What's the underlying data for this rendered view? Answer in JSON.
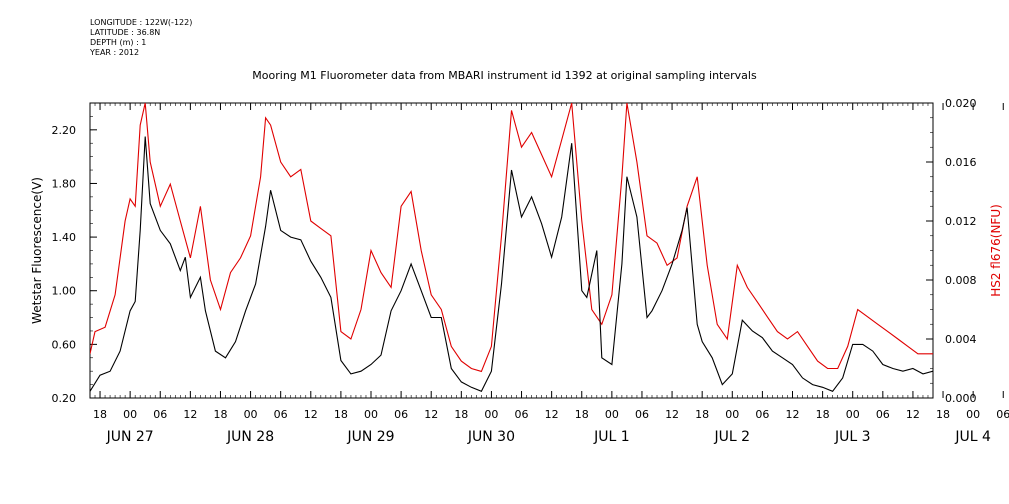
{
  "header_info": {
    "longitude": "LONGITUDE : 122W(-122)",
    "latitude": "LATITUDE : 36.8N",
    "depth": "DEPTH (m) : 1",
    "year": "YEAR : 2012"
  },
  "chart_data": {
    "type": "line",
    "title": "Mooring M1 Fluorometer data from MBARI instrument id 1392 at original sampling intervals",
    "ylabel_left": "Wetstar Fluorescence(V)",
    "ylabel_right": "HS2 fl676(NFU)",
    "ylim_left": [
      0.2,
      2.4
    ],
    "ylim_right": [
      0.0,
      0.02
    ],
    "yticks_left": [
      "0.20",
      "0.60",
      "1.00",
      "1.40",
      "1.80",
      "2.20"
    ],
    "yticks_right": [
      "0.000",
      "0.004",
      "0.008",
      "0.012",
      "0.016",
      "0.020"
    ],
    "xrange_hours": [
      -8,
      160
    ],
    "hour_ticks": [
      "18",
      "00",
      "06",
      "12",
      "18",
      "00",
      "06",
      "12",
      "18",
      "00",
      "06",
      "12",
      "18",
      "00",
      "06",
      "12",
      "18",
      "00",
      "06",
      "12",
      "18",
      "00",
      "06",
      "12",
      "18",
      "00",
      "06",
      "12",
      "18",
      "00",
      "06",
      "12",
      "18",
      "00",
      "06",
      "12"
    ],
    "day_labels": [
      "JUN 27",
      "JUN 28",
      "JUN 29",
      "JUN 30",
      "JUL  1",
      "JUL  2",
      "JUL  3",
      "JUL  4"
    ],
    "colors": {
      "left_series": "#000000",
      "right_series": "#e00000"
    },
    "series": [
      {
        "axis": "left",
        "points": [
          [
            -8,
            0.25
          ],
          [
            -6,
            0.37
          ],
          [
            -4,
            0.4
          ],
          [
            -2,
            0.55
          ],
          [
            0,
            0.85
          ],
          [
            1,
            0.92
          ],
          [
            2,
            1.45
          ],
          [
            3,
            2.15
          ],
          [
            4,
            1.65
          ],
          [
            6,
            1.45
          ],
          [
            8,
            1.35
          ],
          [
            10,
            1.15
          ],
          [
            11,
            1.25
          ],
          [
            12,
            0.95
          ],
          [
            14,
            1.1
          ],
          [
            15,
            0.85
          ],
          [
            17,
            0.55
          ],
          [
            19,
            0.5
          ],
          [
            21,
            0.62
          ],
          [
            23,
            0.85
          ],
          [
            25,
            1.05
          ],
          [
            27,
            1.48
          ],
          [
            28,
            1.75
          ],
          [
            30,
            1.45
          ],
          [
            32,
            1.4
          ],
          [
            34,
            1.38
          ],
          [
            36,
            1.22
          ],
          [
            38,
            1.1
          ],
          [
            40,
            0.95
          ],
          [
            42,
            0.48
          ],
          [
            44,
            0.38
          ],
          [
            46,
            0.4
          ],
          [
            48,
            0.45
          ],
          [
            50,
            0.52
          ],
          [
            52,
            0.85
          ],
          [
            54,
            1.0
          ],
          [
            56,
            1.2
          ],
          [
            58,
            1.0
          ],
          [
            60,
            0.8
          ],
          [
            62,
            0.8
          ],
          [
            64,
            0.42
          ],
          [
            66,
            0.32
          ],
          [
            68,
            0.28
          ],
          [
            70,
            0.25
          ],
          [
            72,
            0.4
          ],
          [
            74,
            1.05
          ],
          [
            76,
            1.9
          ],
          [
            78,
            1.55
          ],
          [
            80,
            1.7
          ],
          [
            82,
            1.5
          ],
          [
            84,
            1.25
          ],
          [
            86,
            1.55
          ],
          [
            88,
            2.1
          ],
          [
            90,
            1.0
          ],
          [
            91,
            0.95
          ],
          [
            93,
            1.3
          ],
          [
            94,
            0.5
          ],
          [
            96,
            0.45
          ],
          [
            98,
            1.2
          ],
          [
            99,
            1.85
          ],
          [
            101,
            1.55
          ],
          [
            103,
            0.8
          ],
          [
            104,
            0.85
          ],
          [
            106,
            1.0
          ],
          [
            108,
            1.2
          ],
          [
            110,
            1.45
          ],
          [
            111,
            1.62
          ],
          [
            113,
            0.75
          ],
          [
            114,
            0.62
          ],
          [
            116,
            0.5
          ],
          [
            118,
            0.3
          ],
          [
            120,
            0.38
          ],
          [
            122,
            0.78
          ],
          [
            124,
            0.7
          ],
          [
            126,
            0.65
          ],
          [
            128,
            0.55
          ],
          [
            130,
            0.5
          ],
          [
            132,
            0.45
          ],
          [
            134,
            0.35
          ],
          [
            136,
            0.3
          ],
          [
            138,
            0.28
          ],
          [
            140,
            0.25
          ],
          [
            142,
            0.35
          ],
          [
            144,
            0.6
          ],
          [
            146,
            0.6
          ],
          [
            148,
            0.55
          ],
          [
            150,
            0.45
          ],
          [
            152,
            0.42
          ],
          [
            154,
            0.4
          ],
          [
            156,
            0.42
          ],
          [
            158,
            0.38
          ],
          [
            160,
            0.4
          ]
        ]
      },
      {
        "axis": "right",
        "points": [
          [
            -8,
            0.003
          ],
          [
            -7,
            0.0045
          ],
          [
            -5,
            0.0048
          ],
          [
            -3,
            0.007
          ],
          [
            -1,
            0.012
          ],
          [
            0,
            0.0135
          ],
          [
            1,
            0.013
          ],
          [
            2,
            0.0185
          ],
          [
            3,
            0.02
          ],
          [
            4,
            0.016
          ],
          [
            6,
            0.013
          ],
          [
            8,
            0.0145
          ],
          [
            10,
            0.012
          ],
          [
            12,
            0.0095
          ],
          [
            14,
            0.013
          ],
          [
            16,
            0.008
          ],
          [
            18,
            0.006
          ],
          [
            20,
            0.0085
          ],
          [
            22,
            0.0095
          ],
          [
            24,
            0.011
          ],
          [
            26,
            0.015
          ],
          [
            27,
            0.019
          ],
          [
            28,
            0.0185
          ],
          [
            30,
            0.016
          ],
          [
            32,
            0.015
          ],
          [
            34,
            0.0155
          ],
          [
            36,
            0.012
          ],
          [
            38,
            0.0115
          ],
          [
            40,
            0.011
          ],
          [
            42,
            0.0045
          ],
          [
            44,
            0.004
          ],
          [
            46,
            0.006
          ],
          [
            48,
            0.01
          ],
          [
            50,
            0.0085
          ],
          [
            52,
            0.0075
          ],
          [
            54,
            0.013
          ],
          [
            56,
            0.014
          ],
          [
            58,
            0.01
          ],
          [
            60,
            0.007
          ],
          [
            62,
            0.006
          ],
          [
            64,
            0.0035
          ],
          [
            66,
            0.0025
          ],
          [
            68,
            0.002
          ],
          [
            70,
            0.0018
          ],
          [
            72,
            0.0035
          ],
          [
            74,
            0.011
          ],
          [
            76,
            0.0195
          ],
          [
            78,
            0.017
          ],
          [
            80,
            0.018
          ],
          [
            82,
            0.0165
          ],
          [
            84,
            0.015
          ],
          [
            86,
            0.0175
          ],
          [
            88,
            0.02
          ],
          [
            90,
            0.012
          ],
          [
            92,
            0.006
          ],
          [
            94,
            0.005
          ],
          [
            96,
            0.007
          ],
          [
            98,
            0.015
          ],
          [
            99,
            0.02
          ],
          [
            101,
            0.016
          ],
          [
            103,
            0.011
          ],
          [
            105,
            0.0105
          ],
          [
            107,
            0.009
          ],
          [
            109,
            0.0095
          ],
          [
            111,
            0.013
          ],
          [
            113,
            0.015
          ],
          [
            115,
            0.009
          ],
          [
            117,
            0.005
          ],
          [
            119,
            0.004
          ],
          [
            121,
            0.009
          ],
          [
            123,
            0.0075
          ],
          [
            125,
            0.0065
          ],
          [
            127,
            0.0055
          ],
          [
            129,
            0.0045
          ],
          [
            131,
            0.004
          ],
          [
            133,
            0.0045
          ],
          [
            135,
            0.0035
          ],
          [
            137,
            0.0025
          ],
          [
            139,
            0.002
          ],
          [
            141,
            0.002
          ],
          [
            143,
            0.0035
          ],
          [
            145,
            0.006
          ],
          [
            147,
            0.0055
          ],
          [
            149,
            0.005
          ],
          [
            151,
            0.0045
          ],
          [
            153,
            0.004
          ],
          [
            155,
            0.0035
          ],
          [
            157,
            0.003
          ],
          [
            160,
            0.003
          ]
        ]
      }
    ]
  }
}
